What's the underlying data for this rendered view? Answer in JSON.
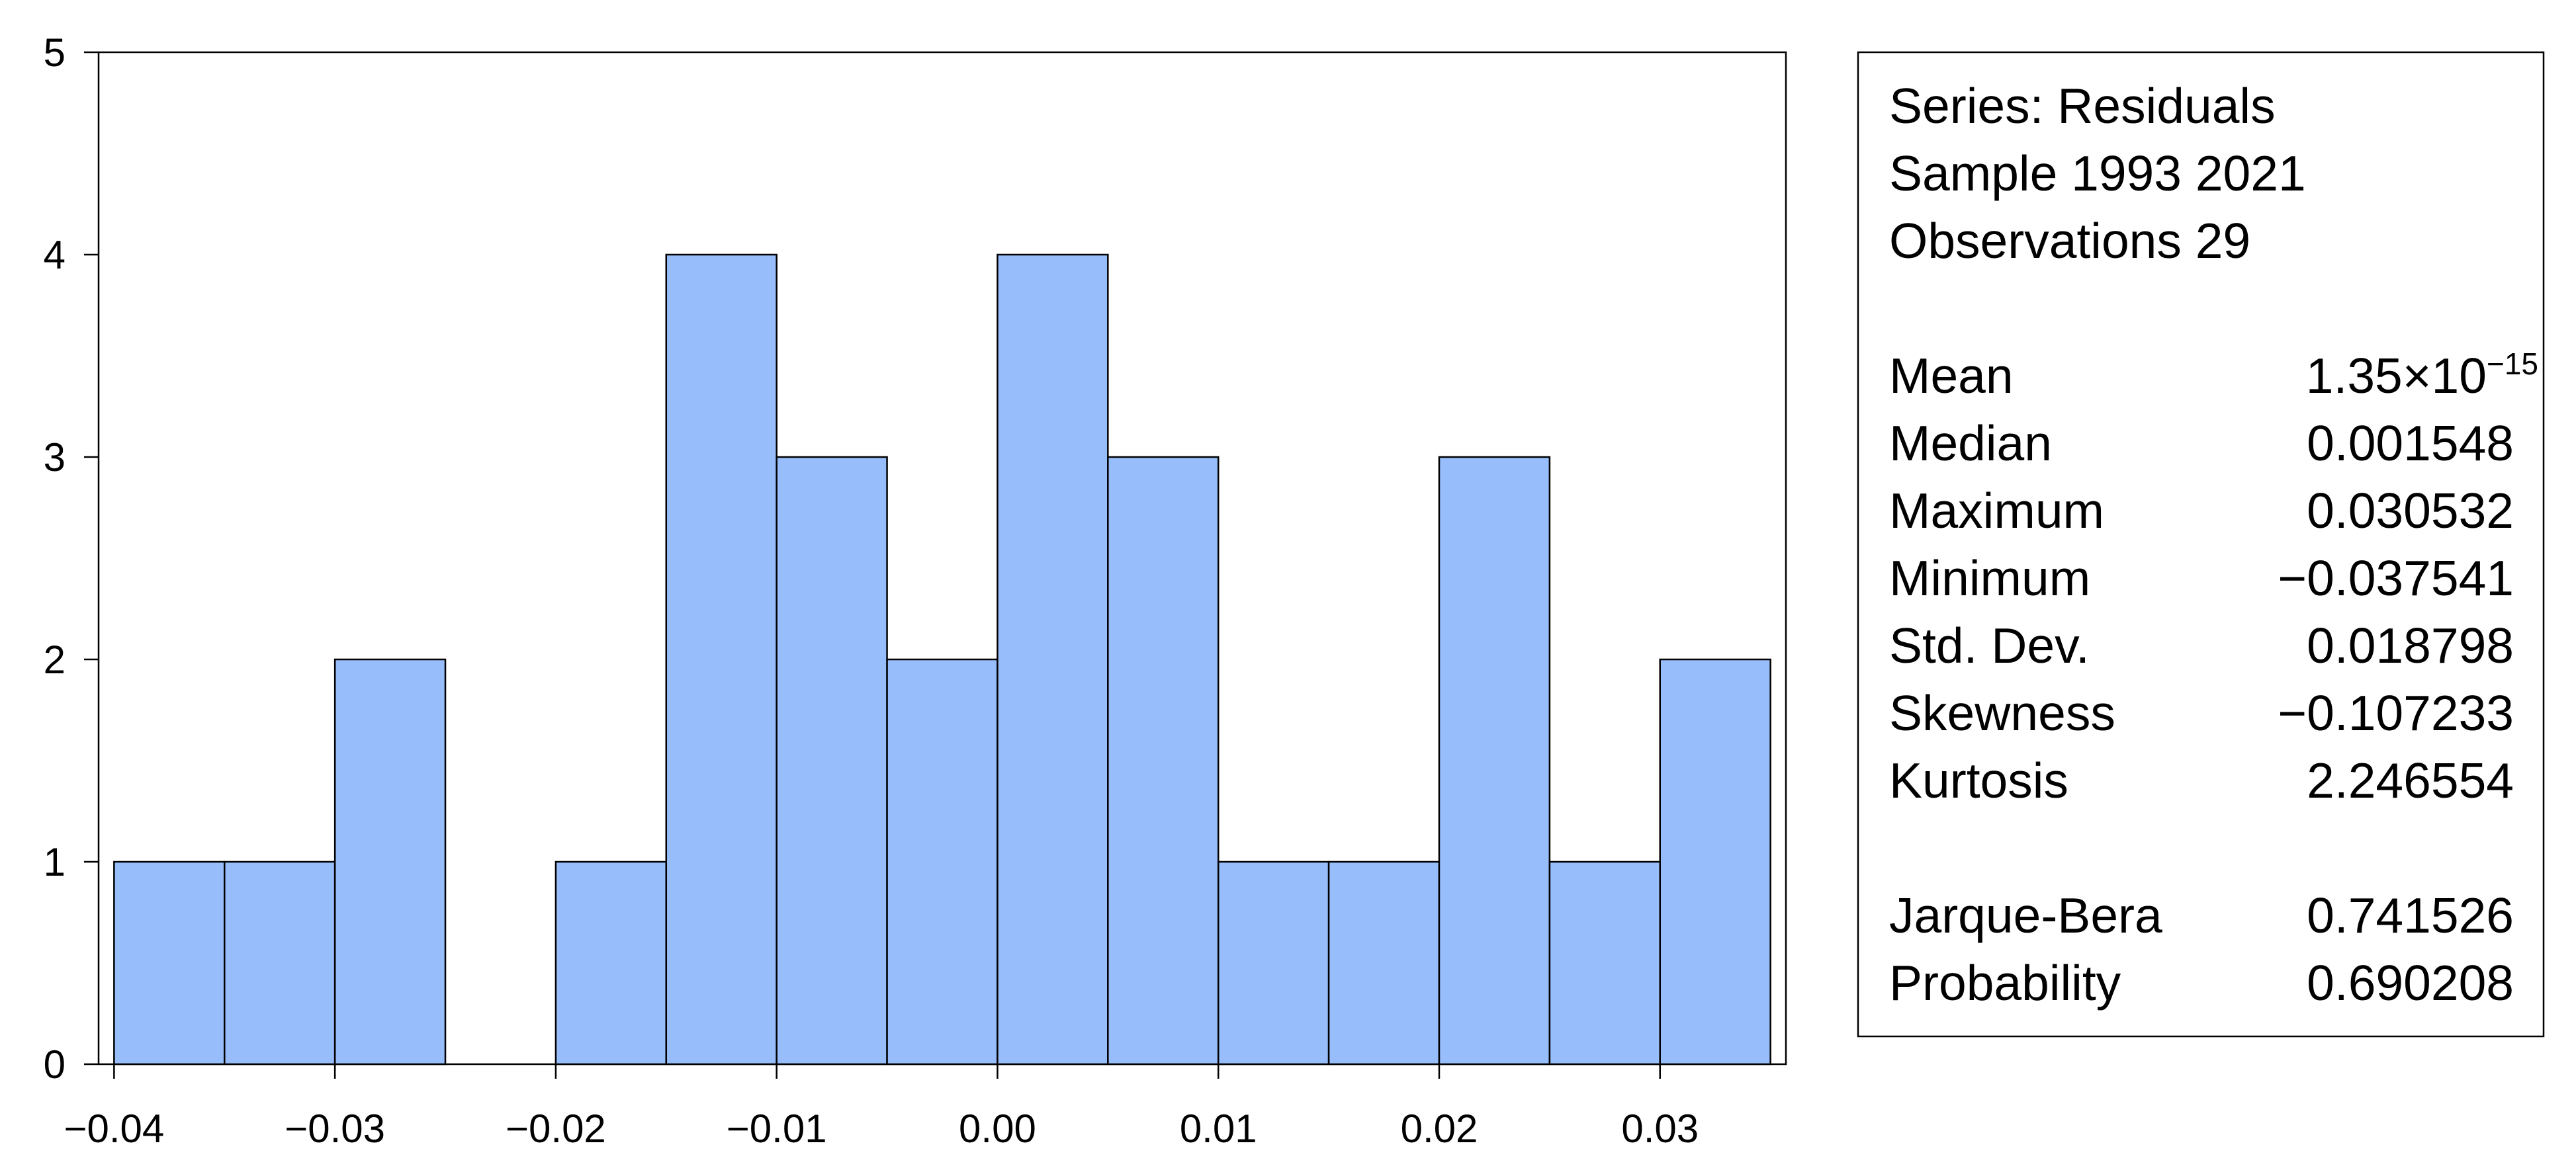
{
  "chart_data": {
    "type": "histogram",
    "bins": [
      -0.04,
      -0.035,
      -0.03,
      -0.025,
      -0.02,
      -0.015,
      -0.01,
      -0.005,
      0.0,
      0.005,
      0.01,
      0.015,
      0.02,
      0.025,
      0.03,
      0.035
    ],
    "counts": [
      1,
      1,
      2,
      0,
      1,
      4,
      3,
      2,
      4,
      3,
      1,
      1,
      3,
      1,
      2
    ],
    "color": "#97bdfb",
    "xlim": [
      -0.0407,
      0.0357
    ],
    "xticks": [
      {
        "value": -0.04,
        "label": "−0.04"
      },
      {
        "value": -0.03,
        "label": "−0.03"
      },
      {
        "value": -0.02,
        "label": "−0.02"
      },
      {
        "value": -0.01,
        "label": "−0.01"
      },
      {
        "value": 0,
        "label": "0.00"
      },
      {
        "value": 0.01,
        "label": "0.01"
      },
      {
        "value": 0.02,
        "label": "0.02"
      },
      {
        "value": 0.03,
        "label": "0.03"
      }
    ],
    "ylim": [
      0,
      5
    ],
    "yticks": [
      0,
      1,
      2,
      3,
      4,
      5
    ],
    "stats": {
      "header": [
        "Series: Residuals",
        "Sample 1993 2021",
        "Observations 29"
      ],
      "moments": [
        {
          "label": "Mean",
          "value": "1.35×10",
          "exponent": "−15"
        },
        {
          "label": "Median",
          "value": "0.001548"
        },
        {
          "label": "Maximum",
          "value": "0.030532"
        },
        {
          "label": "Minimum",
          "value": "−0.037541"
        },
        {
          "label": "Std. Dev.",
          "value": "0.018798"
        },
        {
          "label": "Skewness",
          "value": "−0.107233"
        },
        {
          "label": "Kurtosis",
          "value": "2.246554"
        }
      ],
      "tests": [
        {
          "label": "Jarque-Bera",
          "value": "0.741526"
        },
        {
          "label": "Probability",
          "value": "0.690208"
        }
      ]
    }
  }
}
